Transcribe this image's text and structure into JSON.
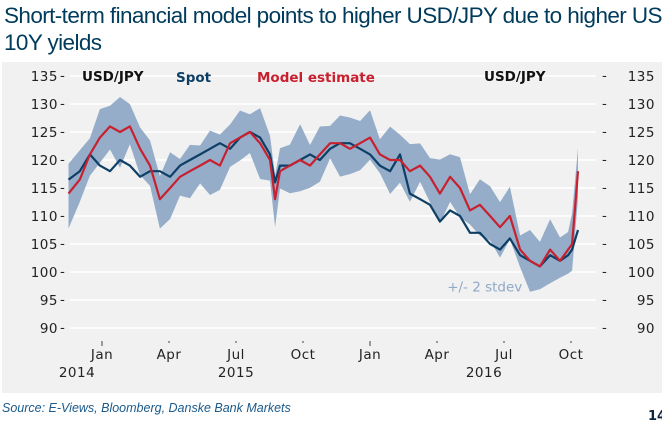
{
  "title": "Short-term financial model points to higher USD/JPY due to higher US 10Y yields",
  "source": "Source: E-Views, Bloomberg, Danske Bank Markets",
  "page_number_fragment": "14",
  "colors": {
    "title": "#003b5c",
    "spot": "#0d3f66",
    "model": "#c8202f",
    "band": "#8fa9c6",
    "band_label": "#8fa9c6",
    "panel_bg": "#f1f1f1",
    "source": "#1b5a8a"
  },
  "chart_data": {
    "type": "line",
    "title": "Short-term financial model points to higher USD/JPY due to higher US 10Y yields",
    "ylabel_left": "USD/JPY",
    "ylabel_right": "USD/JPY",
    "ylim": [
      90,
      135
    ],
    "yticks": [
      135,
      130,
      125,
      120,
      115,
      110,
      105,
      100,
      95,
      90
    ],
    "grid": true,
    "legend_placement": "top",
    "x_ticks": [
      {
        "label": "Jan",
        "year": "2014",
        "t": 0.0
      },
      {
        "label": "Apr",
        "year": "",
        "t": 0.25
      },
      {
        "label": "Jul",
        "year": "2015",
        "t": 0.5
      },
      {
        "label": "Oct",
        "year": "",
        "t": 0.75
      },
      {
        "label": "Jan",
        "year": "",
        "t": 1.0
      },
      {
        "label": "Apr",
        "year": "",
        "t": 1.25
      },
      {
        "label": "Jul",
        "year": "2016",
        "t": 1.5
      },
      {
        "label": "Oct",
        "year": "",
        "t": 1.75
      }
    ],
    "x_range": [
      -0.125,
      1.85
    ],
    "x": [
      -0.125,
      -0.083,
      -0.045,
      -0.008,
      0.03,
      0.067,
      0.104,
      0.142,
      0.179,
      0.216,
      0.254,
      0.291,
      0.328,
      0.366,
      0.403,
      0.44,
      0.478,
      0.515,
      0.552,
      0.59,
      0.627,
      0.646,
      0.664,
      0.701,
      0.739,
      0.776,
      0.813,
      0.851,
      0.888,
      0.925,
      0.963,
      1.0,
      1.037,
      1.075,
      1.112,
      1.149,
      1.187,
      1.224,
      1.261,
      1.299,
      1.336,
      1.373,
      1.41,
      1.448,
      1.485,
      1.522,
      1.56,
      1.597,
      1.634,
      1.672,
      1.709,
      1.739,
      1.754,
      1.776
    ],
    "series": [
      {
        "name": "Spot",
        "values": [
          116.5,
          118,
          121,
          119,
          118,
          120,
          119,
          117,
          118,
          118,
          117,
          119,
          120,
          121,
          122,
          123,
          122,
          124,
          125,
          124,
          121,
          116,
          119,
          119,
          120,
          121,
          120,
          122,
          123,
          123,
          122,
          121,
          119,
          118,
          121,
          114,
          113,
          112,
          109,
          111,
          110,
          107,
          107,
          105,
          104,
          106,
          103,
          102,
          101,
          103,
          102,
          103,
          104,
          107.5
        ]
      },
      {
        "name": "Model estimate",
        "values": [
          114,
          116.5,
          121,
          124,
          126,
          125,
          126,
          122,
          119,
          113,
          115,
          117,
          118,
          119,
          120,
          119,
          123,
          124,
          125,
          123,
          120,
          113,
          118,
          119,
          120,
          119,
          121,
          123,
          123,
          122,
          123,
          124,
          121,
          120,
          120,
          118,
          119,
          117,
          114,
          117,
          115,
          111,
          112,
          110,
          108,
          110,
          104,
          102,
          101,
          104,
          102,
          104,
          105,
          118
        ]
      }
    ],
    "band": {
      "name": "+/- 2 stdev",
      "around": "Model estimate",
      "half_width": 4.5
    },
    "annotations": [
      {
        "text": "+/- 2 stdev",
        "x": 1.4,
        "y": 96.5
      }
    ]
  },
  "legend": {
    "left_axis_label": "USD/JPY",
    "spot": "Spot",
    "model": "Model estimate",
    "right_axis_label": "USD/JPY",
    "band_label": "+/- 2 stdev"
  }
}
